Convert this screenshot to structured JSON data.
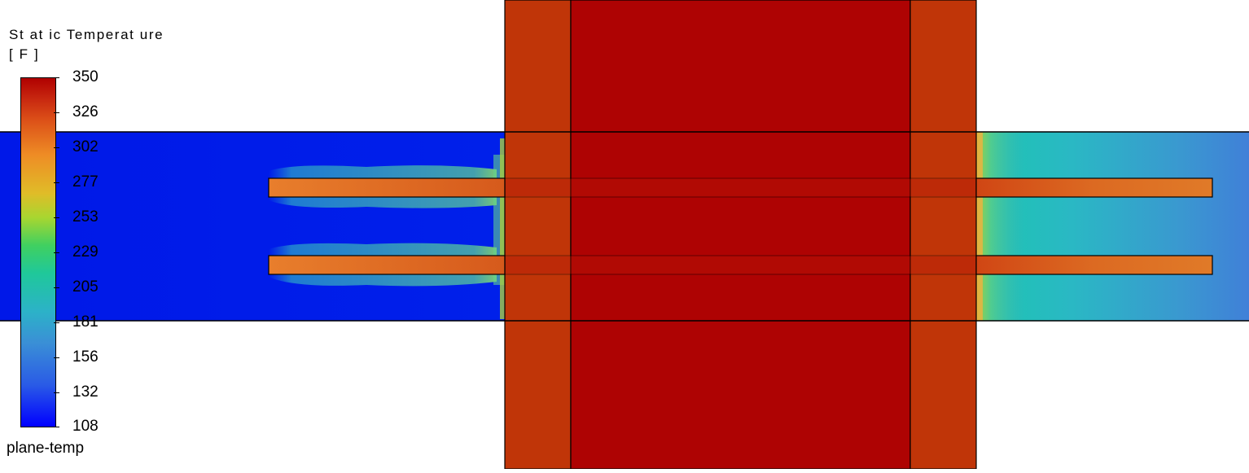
{
  "legend": {
    "title_line1": "St at ic Temperat ure",
    "title_line2": "[ F ]",
    "ticks": [
      "350",
      "326",
      "302",
      "277",
      "253",
      "229",
      "205",
      "181",
      "156",
      "132",
      "108"
    ],
    "range_min": 108,
    "range_max": 350,
    "colormap": [
      "#0000ff",
      "#2a5be6",
      "#3a8fd6",
      "#2cb2c8",
      "#1fc89a",
      "#40d060",
      "#a8d630",
      "#e0bc28",
      "#ee8c25",
      "#dc5018",
      "#c82810",
      "#b00000"
    ]
  },
  "plane_name": "plane-temp"
}
